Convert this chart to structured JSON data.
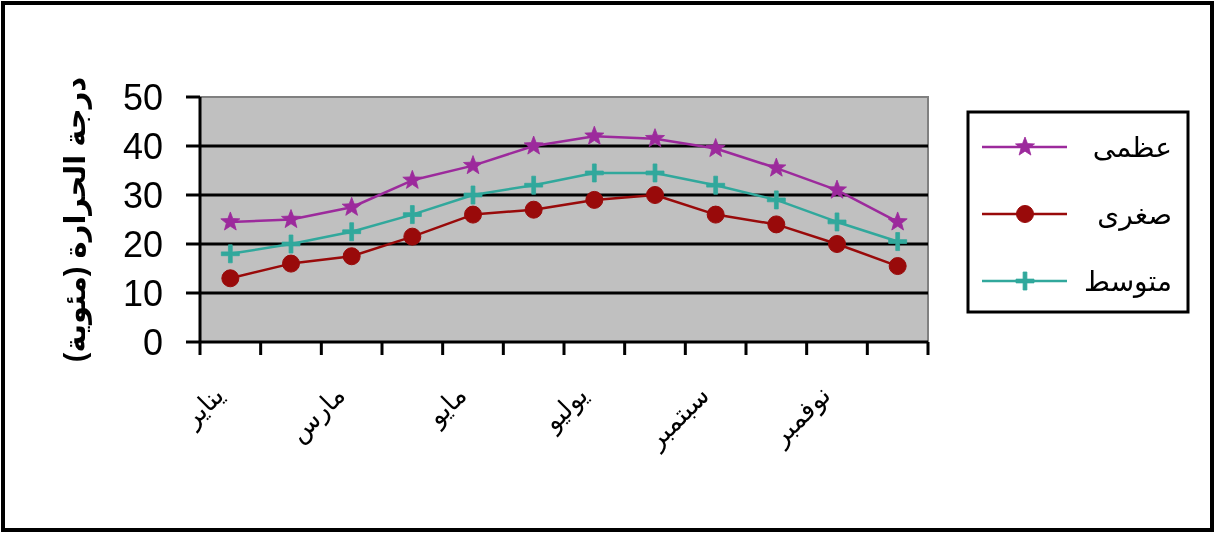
{
  "chart_data": {
    "type": "line",
    "ylabel": "درجة الحرارة (مئوية)",
    "categories": [
      "يناير",
      null,
      "مارس",
      null,
      "مايو",
      null,
      "يوليو",
      null,
      "سبتمبر",
      null,
      "نوفمبر",
      null
    ],
    "ylim": [
      0,
      50
    ],
    "yticks": [
      0,
      10,
      20,
      30,
      40,
      50
    ],
    "grid": "y",
    "legend": "right",
    "series": [
      {
        "name": "عظمى",
        "color": "#9c2a9c",
        "marker": "star",
        "values": [
          24.5,
          25,
          27.5,
          33,
          36,
          40,
          42,
          41.5,
          39.5,
          35.5,
          31,
          24.5
        ]
      },
      {
        "name": "صغرى",
        "color": "#990a0a",
        "marker": "circle",
        "values": [
          13,
          16,
          17.5,
          21.5,
          26,
          27,
          29,
          30,
          26,
          24,
          20,
          15.5
        ]
      },
      {
        "name": "متوسط",
        "color": "#31a89c",
        "marker": "cross",
        "values": [
          18,
          20,
          22.5,
          26,
          30,
          32,
          34.5,
          34.5,
          32,
          29,
          24.5,
          20.5
        ]
      }
    ]
  }
}
